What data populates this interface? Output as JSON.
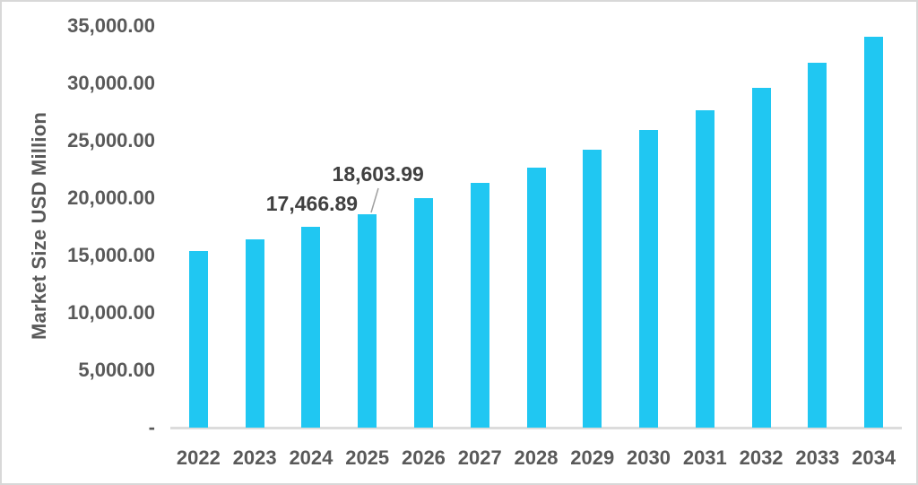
{
  "chart_data": {
    "type": "bar",
    "title": "",
    "xlabel": "",
    "ylabel": "Market Size USD Million",
    "categories": [
      "2022",
      "2023",
      "2024",
      "2025",
      "2026",
      "2027",
      "2028",
      "2029",
      "2030",
      "2031",
      "2032",
      "2033",
      "2034"
    ],
    "values": [
      15400,
      16380,
      17466.89,
      18603.99,
      19980,
      21290,
      22660,
      24220,
      25960,
      27690,
      29640,
      31830,
      34060
    ],
    "ylim": [
      0,
      35000
    ],
    "ytick_interval": 5000,
    "ytick_labels": [
      "-",
      "5,000.00",
      "10,000.00",
      "15,000.00",
      "20,000.00",
      "25,000.00",
      "30,000.00",
      "35,000.00"
    ],
    "grid": false,
    "legend": "none",
    "data_labels": [
      {
        "category": "2024",
        "text": "17,466.89",
        "leader_line": false
      },
      {
        "category": "2025",
        "text": "18,603.99",
        "leader_line": true
      }
    ]
  },
  "colors": {
    "bar": "#20C7F2",
    "tick_text": "#595959",
    "data_label_text": "#404040",
    "axis_line": "#DCDCDC",
    "leader_line": "#A0A0A0",
    "frame_border": "#D8D8D8",
    "background": "#FFFFFF"
  }
}
